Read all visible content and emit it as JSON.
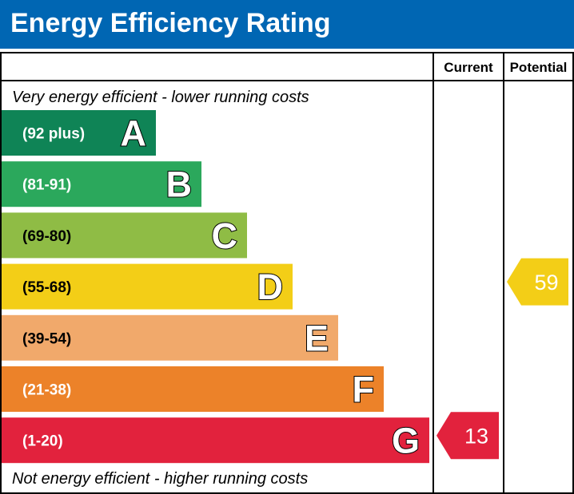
{
  "title": "Energy Efficiency Rating",
  "colors": {
    "header": "#0066b3",
    "A": "#0f8456",
    "B": "#2ba85c",
    "C": "#8fbc45",
    "D": "#f3ce17",
    "E": "#f1a96b",
    "F": "#ec8229",
    "G": "#e2223d"
  },
  "chart_data": {
    "type": "bar",
    "title": "Energy Efficiency Rating",
    "columns": [
      "Current",
      "Potential"
    ],
    "top_note": "Very energy efficient - lower running costs",
    "bottom_note": "Not energy efficient - higher running costs",
    "bands": [
      {
        "letter": "A",
        "range": "(92 plus)",
        "min": 92,
        "max": null
      },
      {
        "letter": "B",
        "range": "(81-91)",
        "min": 81,
        "max": 91
      },
      {
        "letter": "C",
        "range": "(69-80)",
        "min": 69,
        "max": 80
      },
      {
        "letter": "D",
        "range": "(55-68)",
        "min": 55,
        "max": 68
      },
      {
        "letter": "E",
        "range": "(39-54)",
        "min": 39,
        "max": 54
      },
      {
        "letter": "F",
        "range": "(21-38)",
        "min": 21,
        "max": 38
      },
      {
        "letter": "G",
        "range": "(1-20)",
        "min": 1,
        "max": 20
      }
    ],
    "current": {
      "value": 13,
      "band": "G"
    },
    "potential": {
      "value": 59,
      "band": "D"
    }
  }
}
